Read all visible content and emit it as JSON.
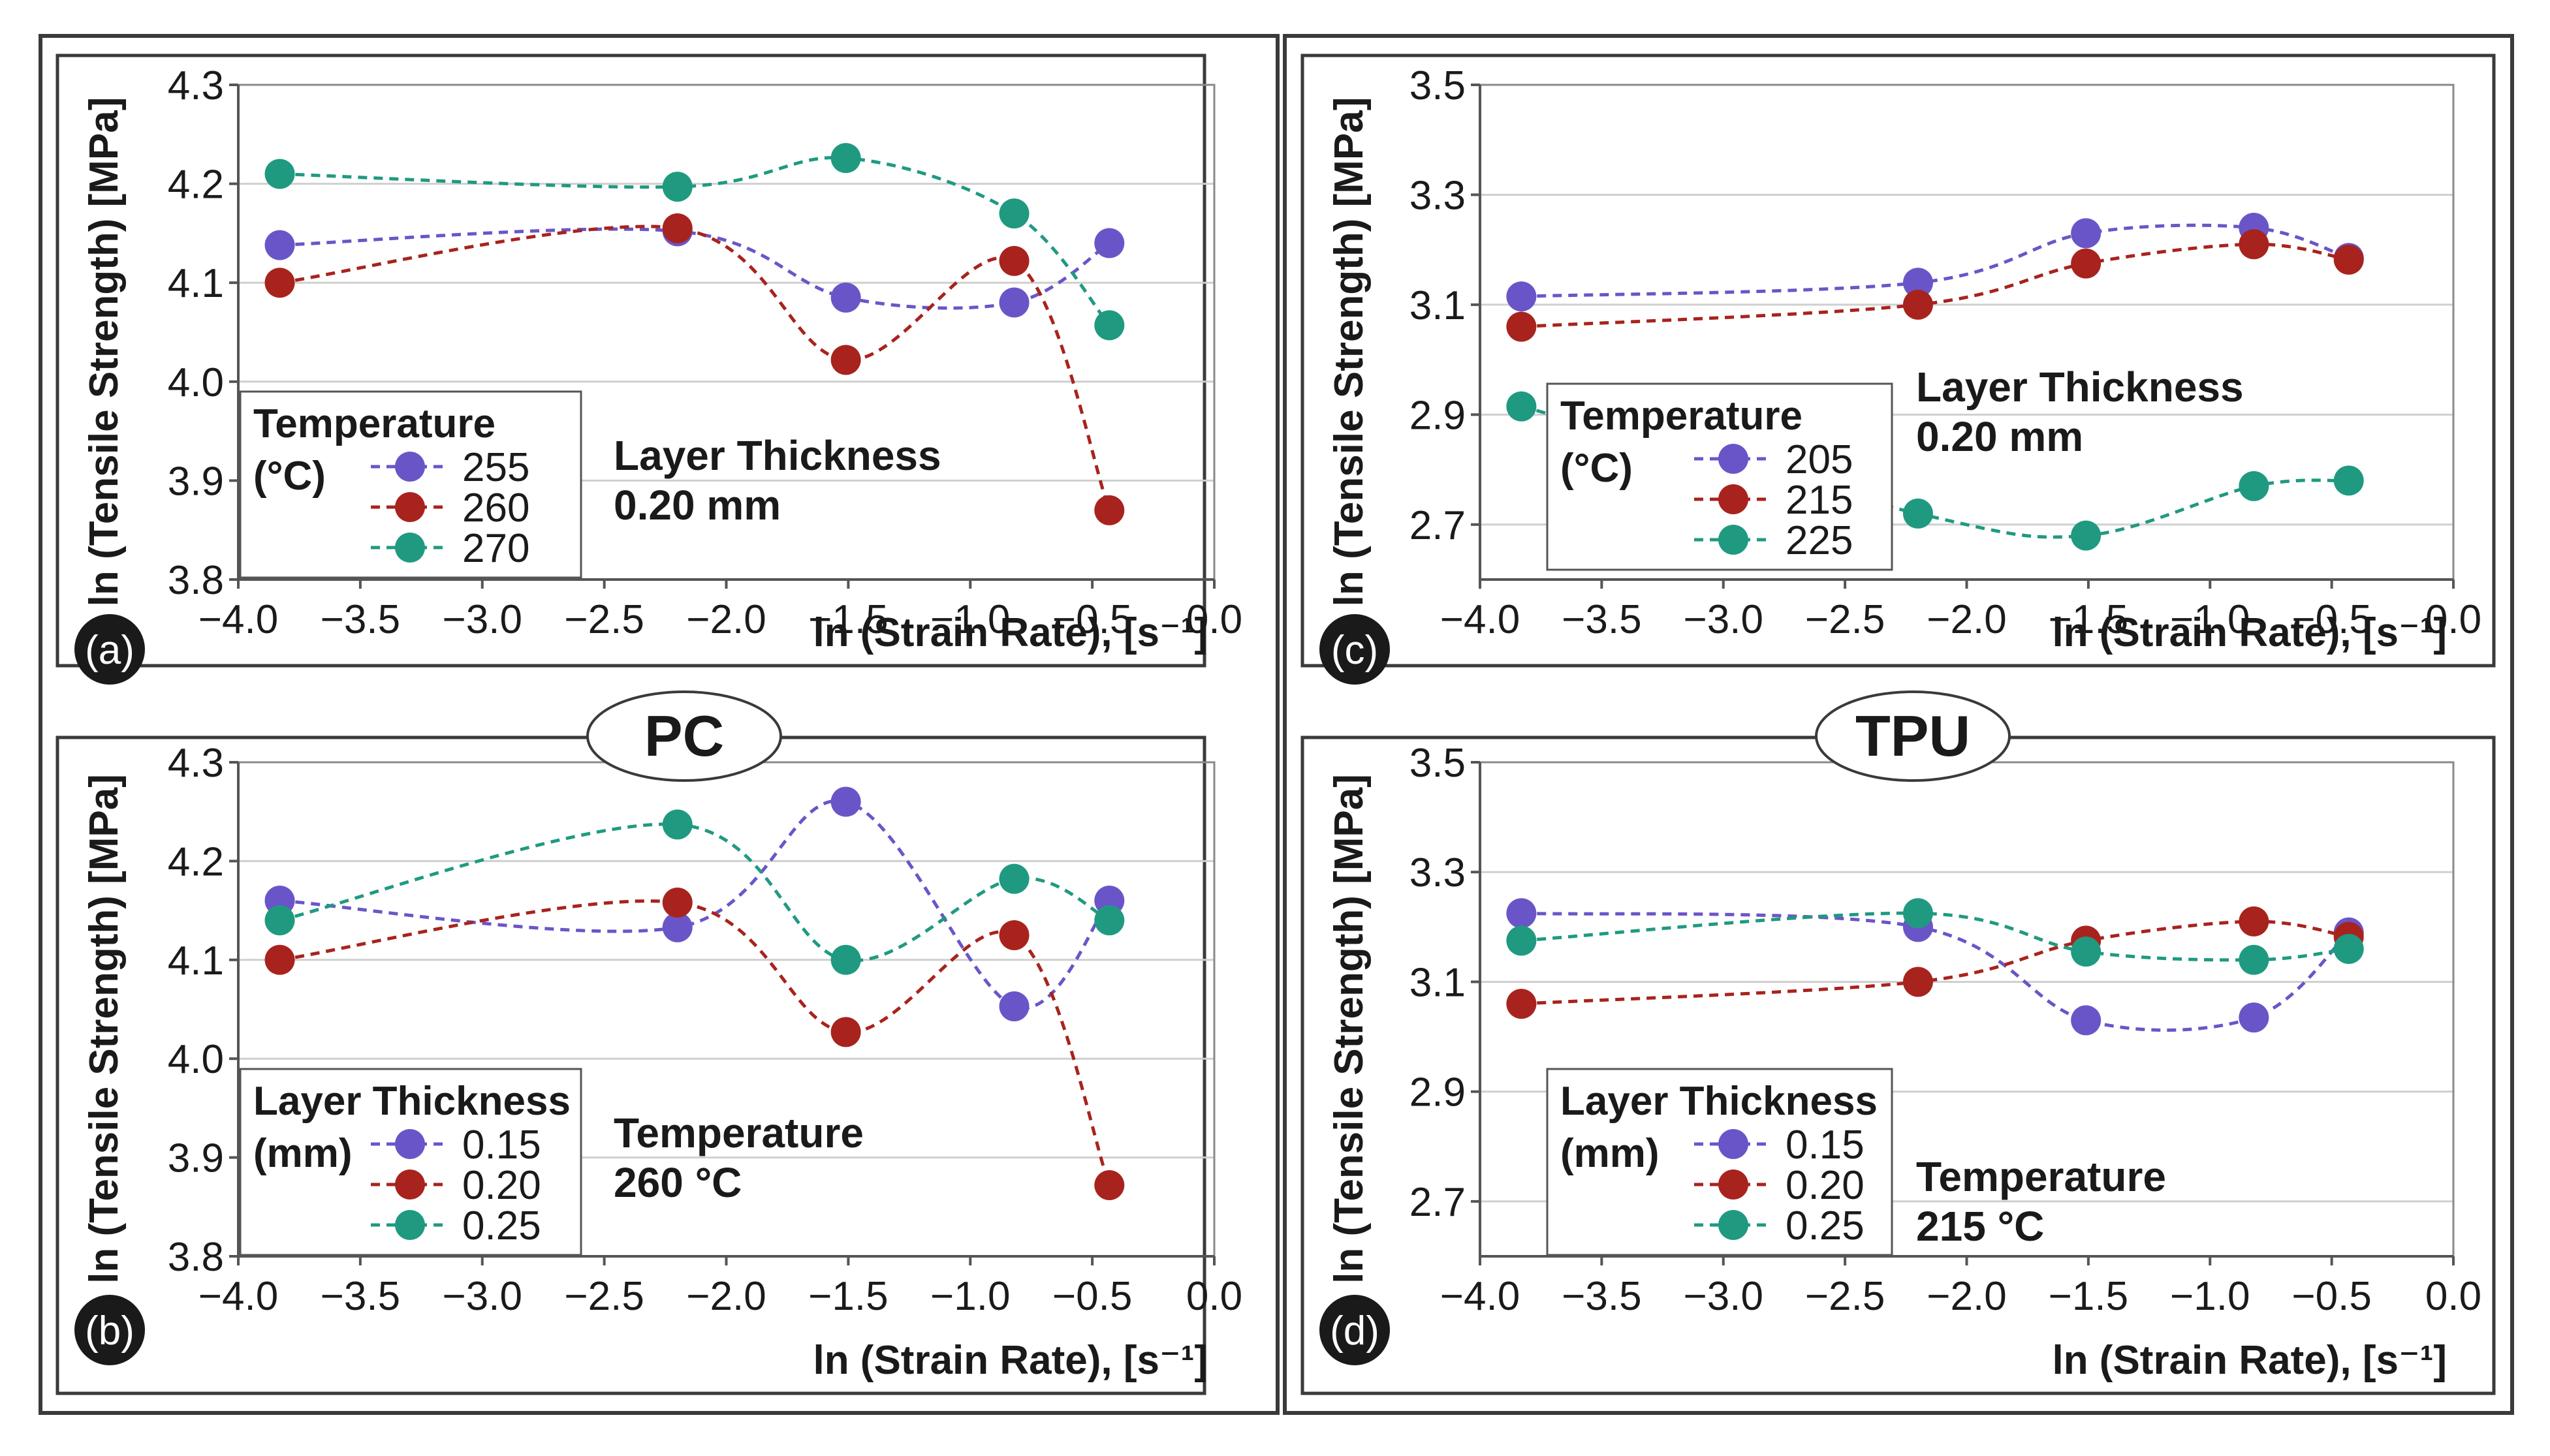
{
  "colors": {
    "purple": "#6a55c8",
    "red": "#a8231d",
    "teal": "#1f9a80",
    "grid": "#cfcfcf",
    "frame": "#3a3a3a"
  },
  "groups": {
    "left": "PC",
    "right": "TPU"
  },
  "chart_data": [
    {
      "type": "line",
      "panel_letter": "(a)",
      "xlabel": "ln (Strain Rate), [s⁻¹]",
      "ylabel": "ln (Tensile Strength) [MPa]",
      "xlim": [
        -4.0,
        0.0
      ],
      "ylim": [
        3.8,
        4.3
      ],
      "xticks": [
        "−4.0",
        "−3.5",
        "−3.0",
        "−2.5",
        "−2.0",
        "−1.5",
        "−1.0",
        "−0.5",
        "0.0"
      ],
      "yticks": [
        "3.8",
        "3.9",
        "4.0",
        "4.1",
        "4.2",
        "4.3"
      ],
      "x": [
        -3.83,
        -2.2,
        -1.51,
        -0.82,
        -0.43
      ],
      "legend_title": [
        "Temperature",
        "(°C)"
      ],
      "annotation": [
        "Layer Thickness",
        "0.20 mm"
      ],
      "series": [
        {
          "name": "255",
          "color_key": "purple",
          "values": [
            4.138,
            4.152,
            4.085,
            4.08,
            4.14
          ]
        },
        {
          "name": "260",
          "color_key": "red",
          "values": [
            4.1,
            4.155,
            4.022,
            4.122,
            3.87
          ]
        },
        {
          "name": "270",
          "color_key": "teal",
          "values": [
            4.21,
            4.197,
            4.226,
            4.17,
            4.057
          ]
        }
      ]
    },
    {
      "type": "line",
      "panel_letter": "(b)",
      "xlabel": "ln (Strain Rate), [s⁻¹]",
      "ylabel": "ln (Tensile Strength) [MPa]",
      "xlim": [
        -4.0,
        0.0
      ],
      "ylim": [
        3.8,
        4.3
      ],
      "xticks": [
        "−4.0",
        "−3.5",
        "−3.0",
        "−2.5",
        "−2.0",
        "−1.5",
        "−1.0",
        "−0.5",
        "0.0"
      ],
      "yticks": [
        "3.8",
        "3.9",
        "4.0",
        "4.1",
        "4.2",
        "4.3"
      ],
      "x": [
        -3.83,
        -2.2,
        -1.51,
        -0.82,
        -0.43
      ],
      "legend_title": [
        "Layer Thickness",
        "(mm)"
      ],
      "annotation": [
        "Temperature",
        "260 °C"
      ],
      "series": [
        {
          "name": "0.15",
          "color_key": "purple",
          "values": [
            4.16,
            4.133,
            4.26,
            4.053,
            4.16
          ]
        },
        {
          "name": "0.20",
          "color_key": "red",
          "values": [
            4.1,
            4.158,
            4.027,
            4.125,
            3.872
          ]
        },
        {
          "name": "0.25",
          "color_key": "teal",
          "values": [
            4.14,
            4.237,
            4.1,
            4.182,
            4.14
          ]
        }
      ]
    },
    {
      "type": "line",
      "panel_letter": "(c)",
      "xlabel": "ln (Strain Rate), [s⁻¹]",
      "ylabel": "ln (Tensile Strength) [MPa]",
      "xlim": [
        -4.0,
        0.0
      ],
      "ylim": [
        2.6,
        3.5
      ],
      "xticks": [
        "−4.0",
        "−3.5",
        "−3.0",
        "−2.5",
        "−2.0",
        "−1.5",
        "−1.0",
        "−0.5",
        "0.0"
      ],
      "yticks": [
        "2.7",
        "2.9",
        "3.1",
        "3.3",
        "3.5"
      ],
      "x": [
        -3.83,
        -2.2,
        -1.51,
        -0.82,
        -0.43
      ],
      "legend_title": [
        "Temperature",
        "(°C)"
      ],
      "annotation": [
        "Layer Thickness",
        "0.20 mm"
      ],
      "series": [
        {
          "name": "205",
          "color_key": "purple",
          "values": [
            3.115,
            3.14,
            3.23,
            3.24,
            3.185
          ]
        },
        {
          "name": "215",
          "color_key": "red",
          "values": [
            3.06,
            3.1,
            3.175,
            3.21,
            3.182
          ]
        },
        {
          "name": "225",
          "color_key": "teal",
          "values": [
            2.915,
            2.72,
            2.68,
            2.77,
            2.78
          ]
        }
      ]
    },
    {
      "type": "line",
      "panel_letter": "(d)",
      "xlabel": "ln (Strain Rate), [s⁻¹]",
      "ylabel": "ln (Tensile Strength) [MPa]",
      "xlim": [
        -4.0,
        0.0
      ],
      "ylim": [
        2.6,
        3.5
      ],
      "xticks": [
        "−4.0",
        "−3.5",
        "−3.0",
        "−2.5",
        "−2.0",
        "−1.5",
        "−1.0",
        "−0.5",
        "0.0"
      ],
      "yticks": [
        "2.7",
        "2.9",
        "3.1",
        "3.3",
        "3.5"
      ],
      "x": [
        -3.83,
        -2.2,
        -1.51,
        -0.82,
        -0.43
      ],
      "legend_title": [
        "Layer Thickness",
        "(mm)"
      ],
      "annotation": [
        "Temperature",
        "215 °C"
      ],
      "series": [
        {
          "name": "0.15",
          "color_key": "purple",
          "values": [
            3.225,
            3.2,
            3.03,
            3.035,
            3.19
          ]
        },
        {
          "name": "0.20",
          "color_key": "red",
          "values": [
            3.06,
            3.1,
            3.175,
            3.21,
            3.182
          ]
        },
        {
          "name": "0.25",
          "color_key": "teal",
          "values": [
            3.175,
            3.225,
            3.155,
            3.14,
            3.16
          ]
        }
      ]
    }
  ]
}
